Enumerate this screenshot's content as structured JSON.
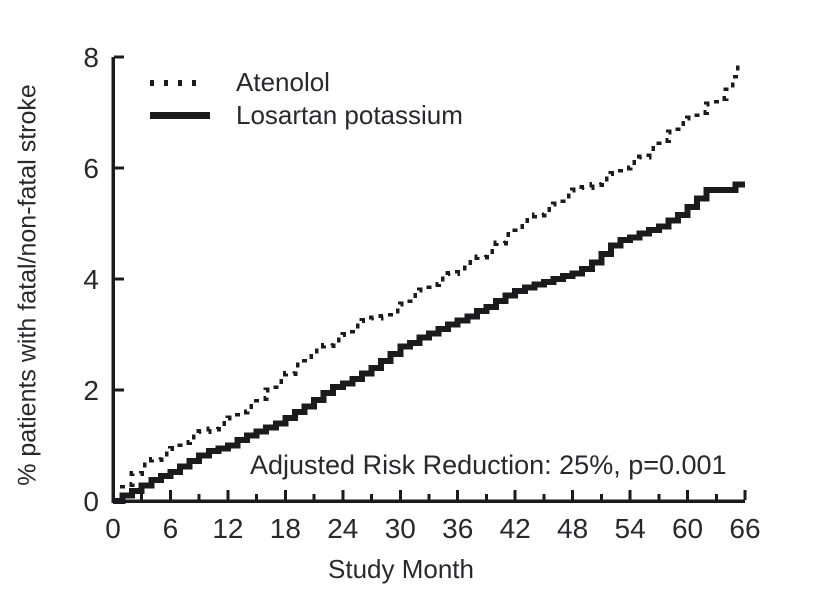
{
  "figure": {
    "background_color": "#ffffff",
    "ink_color": "#1b1b1d",
    "text_color": "#28282e"
  },
  "chart_data": {
    "type": "line",
    "step_interpolation": "step-after (Kaplan-Meier cumulative incidence)",
    "title": "",
    "xlabel": "Study Month",
    "ylabel": "% patients with fatal/non-fatal stroke",
    "xlim": [
      0,
      66
    ],
    "ylim": [
      0,
      8
    ],
    "x_major_tick_step": 6,
    "x_minor_tick_step": 3,
    "y_major_tick_step": 2,
    "x_major_tick_labels": [
      0,
      6,
      12,
      18,
      24,
      30,
      36,
      42,
      48,
      54,
      60,
      66
    ],
    "y_major_tick_labels": [
      0,
      2,
      4,
      6,
      8
    ],
    "grid": false,
    "legend_position": "inside-top-left",
    "annotation": {
      "text": "Adjusted Risk Reduction: 25%, p=0.001",
      "position": "inside-bottom-center"
    },
    "x_months": [
      0,
      1,
      2,
      3,
      4,
      5,
      6,
      7,
      8,
      9,
      10,
      11,
      12,
      13,
      14,
      15,
      16,
      17,
      18,
      19,
      20,
      21,
      22,
      23,
      24,
      25,
      26,
      27,
      28,
      29,
      30,
      31,
      32,
      33,
      34,
      35,
      36,
      37,
      38,
      39,
      40,
      41,
      42,
      43,
      44,
      45,
      46,
      47,
      48,
      49,
      50,
      51,
      52,
      53,
      54,
      55,
      56,
      57,
      58,
      59,
      60,
      61,
      62,
      63,
      64,
      65,
      66
    ],
    "series": [
      {
        "name": "Atenolol",
        "line_style": "dotted",
        "color": "#1b1b1d",
        "values": [
          0,
          0.3,
          0.5,
          0.65,
          0.75,
          0.85,
          0.95,
          1.05,
          1.15,
          1.25,
          1.3,
          1.4,
          1.5,
          1.6,
          1.7,
          1.85,
          2.0,
          2.15,
          2.3,
          2.45,
          2.6,
          2.7,
          2.8,
          2.9,
          3.0,
          3.15,
          3.25,
          3.3,
          3.32,
          3.42,
          3.55,
          3.7,
          3.8,
          3.9,
          4.0,
          4.1,
          4.2,
          4.3,
          4.4,
          4.5,
          4.65,
          4.8,
          4.95,
          5.05,
          5.15,
          5.25,
          5.35,
          5.5,
          5.6,
          5.65,
          5.7,
          5.8,
          5.9,
          6.0,
          6.1,
          6.2,
          6.35,
          6.5,
          6.65,
          6.8,
          6.9,
          7.0,
          7.15,
          7.25,
          7.5,
          7.8,
          7.8
        ]
      },
      {
        "name": "Losartan potassium",
        "line_style": "solid",
        "color": "#1b1b1d",
        "values": [
          0,
          0.1,
          0.18,
          0.28,
          0.38,
          0.45,
          0.52,
          0.62,
          0.72,
          0.82,
          0.9,
          0.95,
          1.0,
          1.1,
          1.18,
          1.25,
          1.32,
          1.4,
          1.5,
          1.6,
          1.7,
          1.82,
          1.95,
          2.05,
          2.12,
          2.2,
          2.3,
          2.4,
          2.52,
          2.65,
          2.78,
          2.85,
          2.95,
          3.02,
          3.1,
          3.18,
          3.25,
          3.32,
          3.42,
          3.5,
          3.6,
          3.7,
          3.78,
          3.85,
          3.9,
          3.95,
          4.0,
          4.05,
          4.1,
          4.18,
          4.3,
          4.45,
          4.6,
          4.7,
          4.75,
          4.82,
          4.88,
          4.95,
          5.05,
          5.15,
          5.3,
          5.45,
          5.6,
          5.6,
          5.6,
          5.7,
          5.7
        ]
      }
    ]
  }
}
